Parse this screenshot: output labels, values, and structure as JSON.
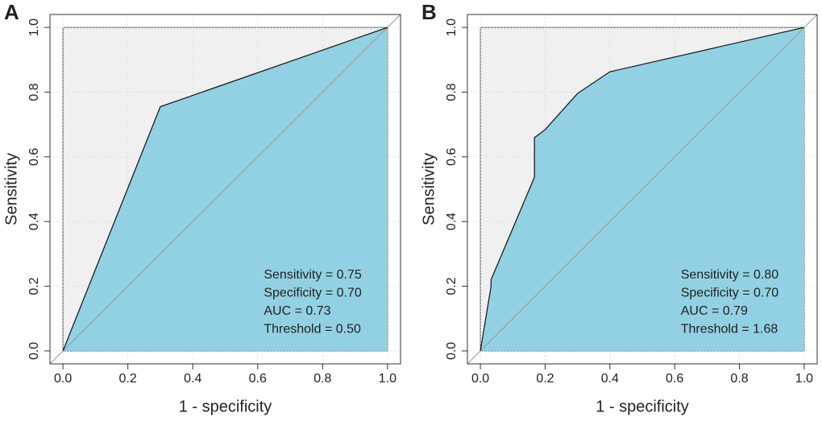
{
  "chart_data": [
    {
      "type": "area",
      "panel": "A",
      "xlabel": "1 - specificity",
      "ylabel": "Sensitivity",
      "x": [
        0,
        0.3,
        1
      ],
      "values": [
        0,
        0.755,
        1
      ],
      "color": "#92d1e3",
      "xlim": [
        -0.04,
        1.04
      ],
      "ylim": [
        -0.04,
        1.04
      ],
      "xticks": [
        {
          "value": 0,
          "label": "0.0"
        },
        0.2,
        0.4,
        0.6,
        0.8,
        {
          "value": 1,
          "label": "1.0"
        }
      ],
      "yticks": [
        {
          "value": 0,
          "label": "0.0"
        },
        0.2,
        0.4,
        0.6,
        0.8,
        {
          "value": 1,
          "label": "1.0"
        }
      ],
      "grid": true,
      "annotations": [
        "Sensitivity = 0.75",
        "Specificity = 0.70",
        "AUC = 0.73",
        "Threshold = 0.50"
      ]
    },
    {
      "type": "area",
      "panel": "B",
      "xlabel": "1 - specificity",
      "ylabel": "Sensitivity",
      "x": [
        0,
        0.033,
        0.033,
        0.167,
        0.167,
        0.2,
        0.3,
        0.4,
        1
      ],
      "values": [
        0,
        0.2,
        0.22,
        0.537,
        0.659,
        0.684,
        0.796,
        0.863,
        1
      ],
      "color": "#92d1e3",
      "xlim": [
        -0.04,
        1.04
      ],
      "ylim": [
        -0.04,
        1.04
      ],
      "xticks": [
        {
          "value": 0,
          "label": "0.0"
        },
        0.2,
        0.4,
        0.6,
        0.8,
        {
          "value": 1,
          "label": "1.0"
        }
      ],
      "yticks": [
        {
          "value": 0,
          "label": "0.0"
        },
        0.2,
        0.4,
        0.6,
        0.8,
        {
          "value": 1,
          "label": "1.0"
        }
      ],
      "grid": true,
      "annotations": [
        "Sensitivity = 0.80",
        "Specificity = 0.70",
        "AUC = 0.79",
        "Threshold = 1.68"
      ]
    }
  ]
}
